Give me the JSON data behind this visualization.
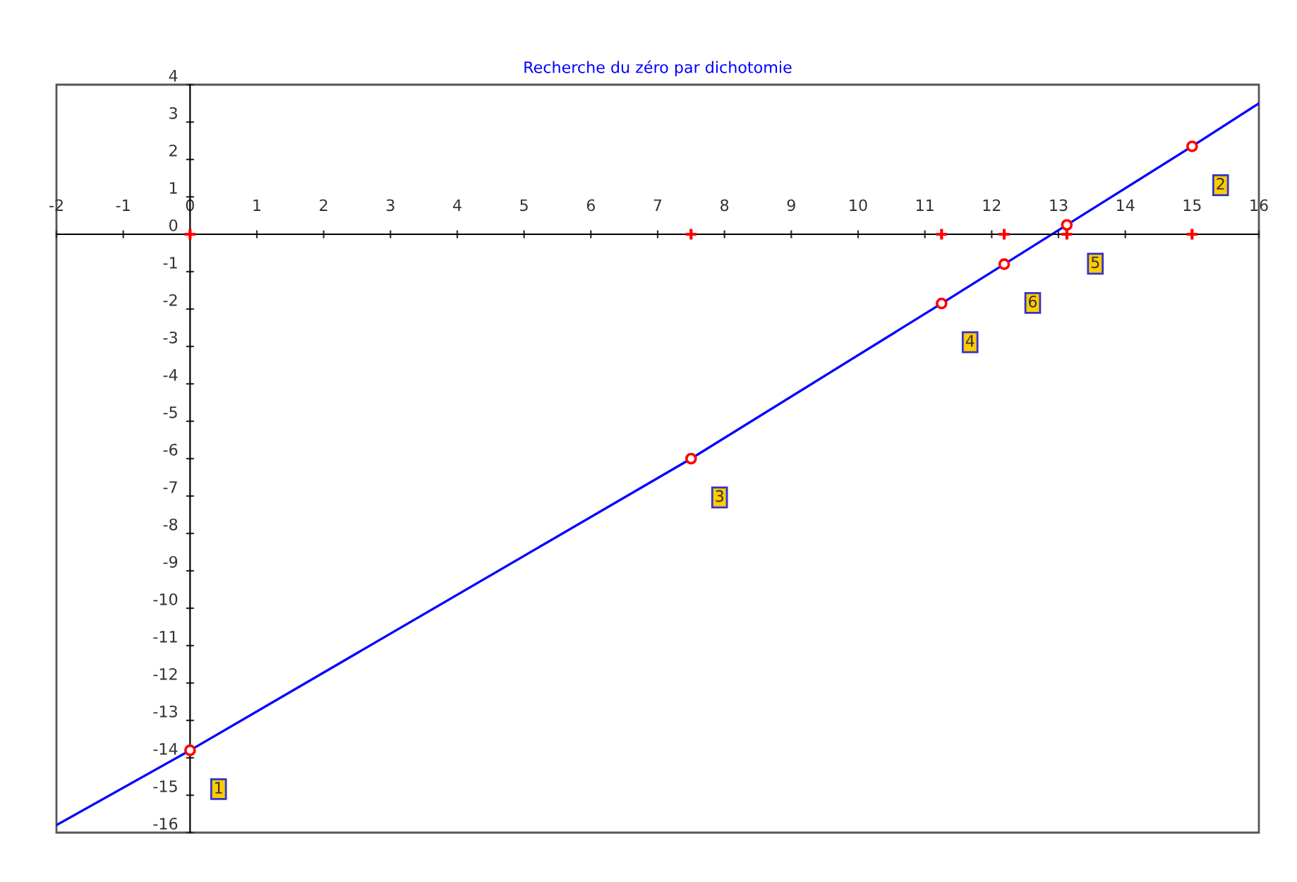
{
  "chart_data": {
    "type": "line",
    "title": "Recherche du zéro par dichotomie",
    "xlim": [
      -2,
      16
    ],
    "ylim": [
      -16,
      4
    ],
    "xticks": [
      -2,
      -1,
      0,
      1,
      2,
      3,
      4,
      5,
      6,
      7,
      8,
      9,
      10,
      11,
      12,
      13,
      14,
      15,
      16
    ],
    "yticks": [
      -16,
      -15,
      -14,
      -13,
      -12,
      -11,
      -10,
      -9,
      -8,
      -7,
      -6,
      -5,
      -4,
      -3,
      -2,
      -1,
      0,
      1,
      2,
      3,
      4
    ],
    "grid": false,
    "series": [
      {
        "color": "#0000ff",
        "x": [
          -2,
          0,
          7.5,
          11.25,
          15,
          16
        ],
        "values": [
          -15.8,
          -13.8,
          -6.0,
          -1.85,
          2.35,
          3.5
        ],
        "marker": "none"
      },
      {
        "type": "scatter",
        "color": "#ff0000",
        "marker": "circle",
        "x": [
          0,
          15,
          7.5,
          11.25,
          13.125,
          12.1875
        ],
        "values": [
          -13.8,
          2.35,
          -6.0,
          -1.85,
          0.25,
          -0.8
        ]
      },
      {
        "type": "scatter",
        "color": "#ff0000",
        "marker": "cross",
        "x": [
          0,
          15,
          7.5,
          11.25,
          13.125,
          12.1875
        ],
        "values": [
          0,
          0,
          0,
          0,
          0,
          0
        ]
      }
    ],
    "annotations": [
      {
        "text": "1",
        "x": 0,
        "y": -13.8
      },
      {
        "text": "2",
        "x": 15,
        "y": 2.35
      },
      {
        "text": "3",
        "x": 7.5,
        "y": -6.0
      },
      {
        "text": "4",
        "x": 11.25,
        "y": -1.85
      },
      {
        "text": "5",
        "x": 13.125,
        "y": 0.25
      },
      {
        "text": "6",
        "x": 12.1875,
        "y": -0.8
      }
    ]
  }
}
